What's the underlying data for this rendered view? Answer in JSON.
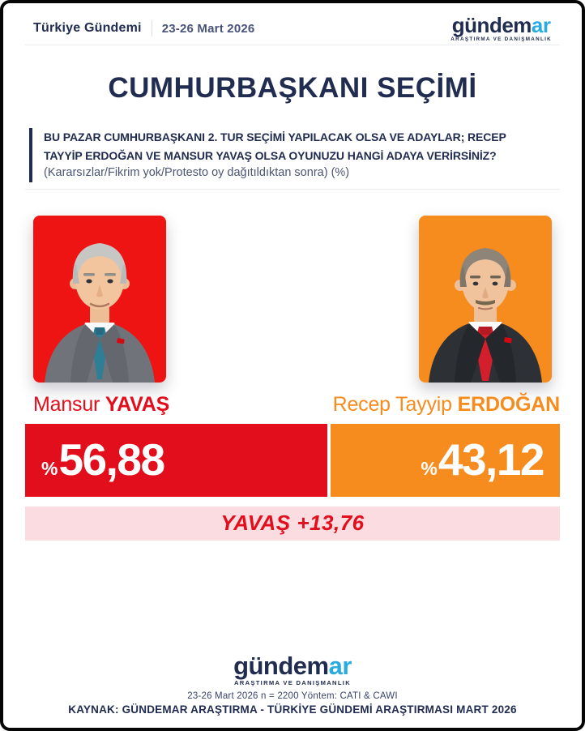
{
  "header": {
    "program_title": "Türkiye Gündemi",
    "date_range": "23-26 Mart 2026"
  },
  "logo": {
    "prefix": "gündem",
    "suffix": "ar",
    "tagline": "ARAŞTIRMA VE DANIŞMANLIK"
  },
  "title": "CUMHURBAŞKANI SEÇİMİ",
  "question": {
    "line1": "BU PAZAR CUMHURBAŞKANI 2. TUR SEÇİMİ YAPILACAK OLSA VE ADAYLAR; RECEP",
    "line2": "TAYYİP ERDOĞAN VE MANSUR YAVAŞ OLSA OYUNUZU HANGİ ADAYA VERİRSİNİZ?",
    "note": "(Kararsızlar/Fikrim yok/Protesto oy dağıtıldıktan sonra) (%)"
  },
  "candidates": [
    {
      "first": "Mansur",
      "last": "YAVAŞ",
      "percent_sign": "%",
      "value": "56,88",
      "color": "#e30e1c"
    },
    {
      "first": "Recep Tayyip",
      "last": "ERDOĞAN",
      "percent_sign": "%",
      "value": "43,12",
      "color": "#f68b1e"
    }
  ],
  "difference": "YAVAŞ +13,76",
  "footer": {
    "methodology": "23-26 Mart 2026 n = 2200 Yöntem: CATI & CAWI",
    "source": "KAYNAK: GÜNDEMAR ARAŞTIRMA - TÜRKİYE GÜNDEMİ ARAŞTIRMASI MART 2026"
  },
  "colors": {
    "navy": "#212c51",
    "red": "#e30e1c",
    "orange": "#f68b1e",
    "cyan": "#29abe2",
    "pink": "#fbdce0",
    "muted": "#4a5572",
    "divider": "#ececf3",
    "photo-red": "#ee1414",
    "photo-orange": "#f68b1e"
  },
  "chart_data": {
    "type": "bar",
    "title": "CUMHURBAŞKANI SEÇİMİ",
    "subtitle": "(Kararsızlar/Fikrim yok/Protesto oy dağıtıldıktan sonra) (%)",
    "categories": [
      "Mansur YAVAŞ",
      "Recep Tayyip ERDOĞAN"
    ],
    "values": [
      56.88,
      43.12
    ],
    "value_labels": [
      "%56,88",
      "%43,12"
    ],
    "unit": "%",
    "colors": [
      "#e30e1c",
      "#f68b1e"
    ],
    "difference_label": "YAVAŞ +13,76",
    "difference_value": 13.76,
    "legend": false,
    "orientation": "horizontal-split",
    "sample_note": "23-26 Mart 2026 n = 2200 Yöntem: CATI & CAWI",
    "source": "KAYNAK: GÜNDEMAR ARAŞTIRMA - TÜRKİYE GÜNDEMİ ARAŞTIRMASI MART 2026"
  }
}
